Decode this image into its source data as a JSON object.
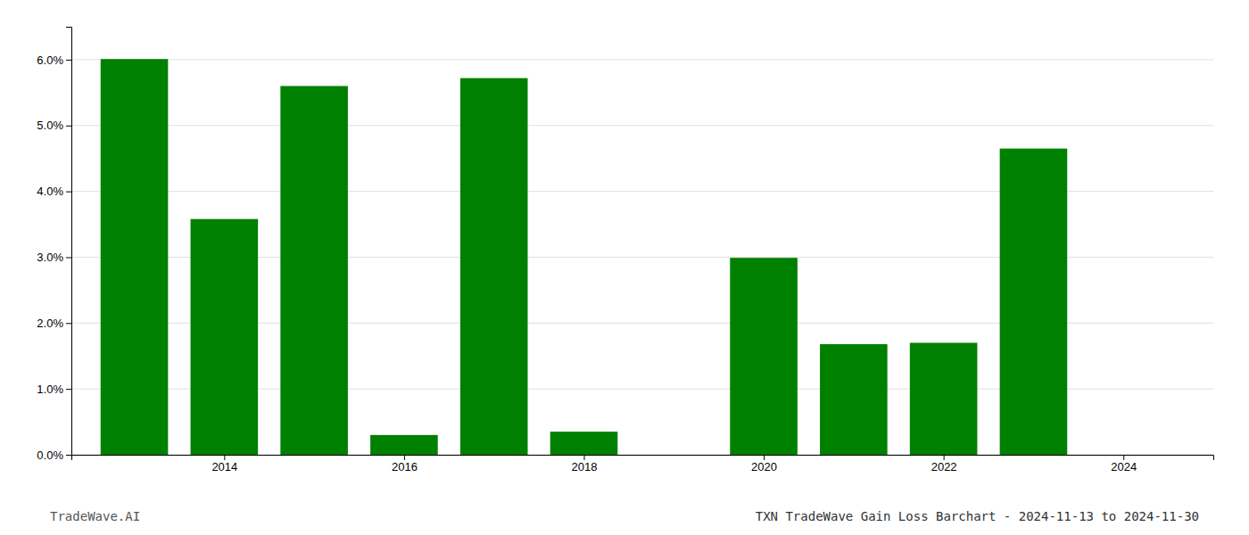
{
  "chart_data": {
    "type": "bar",
    "title": "TXN TradeWave Gain Loss Barchart - 2024-11-13 to 2024-11-30",
    "annotations": [
      "TradeWave.AI"
    ],
    "x": [
      2013,
      2014,
      2015,
      2016,
      2017,
      2018,
      2019,
      2020,
      2021,
      2022,
      2023,
      2024
    ],
    "values": [
      0.0601,
      0.0358,
      0.056,
      0.003,
      0.0572,
      0.0035,
      0.0,
      0.0299,
      0.0168,
      0.017,
      0.0465,
      0.0
    ],
    "color": "#008000",
    "xlim": [
      2012.3,
      2025.0
    ],
    "xticks": [
      2014,
      2016,
      2018,
      2020,
      2022,
      2024
    ],
    "ylim": [
      0,
      0.065
    ],
    "yticks": [
      {
        "value": 0.0,
        "label": "0.0%"
      },
      {
        "value": 0.01,
        "label": "1.0%"
      },
      {
        "value": 0.02,
        "label": "2.0%"
      },
      {
        "value": 0.03,
        "label": "3.0%"
      },
      {
        "value": 0.04,
        "label": "4.0%"
      },
      {
        "value": 0.05,
        "label": "5.0%"
      },
      {
        "value": 0.06,
        "label": "6.0%"
      }
    ],
    "grid": true
  }
}
